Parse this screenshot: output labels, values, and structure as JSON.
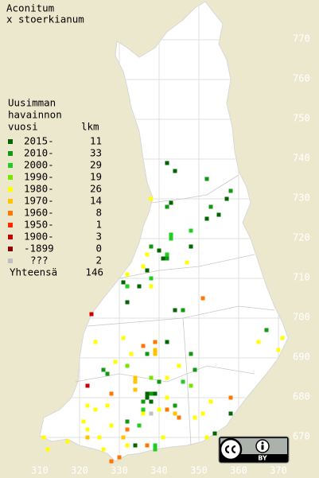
{
  "title": "Aconitum",
  "subtitle": "x stoerkianum",
  "legend": {
    "heading": [
      "Uusimman",
      "havainnon",
      "vuosi"
    ],
    "count_heading": "lkm",
    "items": [
      {
        "label": "2015-",
        "color": "#006600",
        "count": 11
      },
      {
        "label": "2010-",
        "color": "#119911",
        "count": 33
      },
      {
        "label": "2000-",
        "color": "#22cc22",
        "count": 29
      },
      {
        "label": "1990-",
        "color": "#77e600",
        "count": 19
      },
      {
        "label": "1980-",
        "color": "#ffff00",
        "count": 26
      },
      {
        "label": "1970-",
        "color": "#ffc400",
        "count": 14
      },
      {
        "label": "1960-",
        "color": "#ff7700",
        "count": 8
      },
      {
        "label": "1950-",
        "color": "#ff2a00",
        "count": 1
      },
      {
        "label": "1900-",
        "color": "#cc0000",
        "count": 3
      },
      {
        "label": "-1899",
        "color": "#880000",
        "count": 0
      },
      {
        "label": "???",
        "color": "#c0c0c0",
        "count": 2
      }
    ],
    "total_label": "Yhteensä",
    "total": 146
  },
  "map": {
    "xlim": [
      300,
      380
    ],
    "ylim": [
      660,
      780
    ],
    "xticks": [
      310,
      320,
      330,
      340,
      350,
      360,
      370
    ],
    "yticks": [
      670,
      680,
      690,
      700,
      710,
      720,
      730,
      740,
      750,
      760,
      770
    ],
    "points": [
      [
        342,
        739,
        0
      ],
      [
        344,
        737,
        0
      ],
      [
        352,
        735,
        1
      ],
      [
        358,
        732,
        1
      ],
      [
        357,
        730,
        0
      ],
      [
        338,
        730,
        4
      ],
      [
        343,
        729,
        0
      ],
      [
        342,
        728,
        1
      ],
      [
        353,
        728,
        1
      ],
      [
        355,
        726,
        0
      ],
      [
        352,
        725,
        0
      ],
      [
        348,
        722,
        2
      ],
      [
        343,
        721,
        2
      ],
      [
        343,
        720,
        2
      ],
      [
        338,
        718,
        1
      ],
      [
        340,
        717,
        0
      ],
      [
        348,
        718,
        0
      ],
      [
        337,
        716,
        4
      ],
      [
        342,
        716,
        2
      ],
      [
        342,
        715,
        1
      ],
      [
        341,
        715,
        0
      ],
      [
        347,
        714,
        4
      ],
      [
        336,
        713,
        4
      ],
      [
        337,
        712,
        0
      ],
      [
        338,
        710,
        2
      ],
      [
        332,
        711,
        4
      ],
      [
        331,
        709,
        0
      ],
      [
        332,
        708,
        2
      ],
      [
        335,
        708,
        0
      ],
      [
        338,
        708,
        4
      ],
      [
        332,
        704,
        0
      ],
      [
        344,
        702,
        0
      ],
      [
        346,
        702,
        1
      ],
      [
        351,
        705,
        6
      ],
      [
        323,
        701,
        8
      ],
      [
        367,
        697,
        1
      ],
      [
        371,
        695,
        4
      ],
      [
        370,
        692,
        4
      ],
      [
        365,
        694,
        4
      ],
      [
        331,
        695,
        4
      ],
      [
        324,
        694,
        4
      ],
      [
        336,
        693,
        6
      ],
      [
        339,
        694,
        6
      ],
      [
        339,
        692,
        5
      ],
      [
        339,
        691,
        5
      ],
      [
        337,
        691,
        1
      ],
      [
        342,
        694,
        0
      ],
      [
        348,
        691,
        1
      ],
      [
        333,
        691,
        4
      ],
      [
        329,
        689,
        4
      ],
      [
        345,
        688,
        4
      ],
      [
        349,
        687,
        1
      ],
      [
        332,
        688,
        3
      ],
      [
        326,
        687,
        1
      ],
      [
        327,
        686,
        1
      ],
      [
        334,
        685,
        5
      ],
      [
        334,
        684,
        5
      ],
      [
        334,
        682,
        5
      ],
      [
        346,
        684,
        2
      ],
      [
        348,
        683,
        3
      ],
      [
        338,
        685,
        3
      ],
      [
        340,
        684,
        1
      ],
      [
        342,
        685,
        4
      ],
      [
        322,
        683,
        8
      ],
      [
        328,
        681,
        6
      ],
      [
        337,
        681,
        0
      ],
      [
        339,
        681,
        0
      ],
      [
        338,
        681,
        1
      ],
      [
        336,
        679,
        1
      ],
      [
        338,
        679,
        0
      ],
      [
        337,
        680,
        0
      ],
      [
        342,
        680,
        4
      ],
      [
        344,
        678,
        1
      ],
      [
        353,
        679,
        4
      ],
      [
        358,
        680,
        6
      ],
      [
        336,
        677,
        2
      ],
      [
        338,
        676,
        10
      ],
      [
        336,
        676,
        4
      ],
      [
        340,
        677,
        4
      ],
      [
        342,
        677,
        6
      ],
      [
        344,
        676,
        5
      ],
      [
        345,
        675,
        6
      ],
      [
        349,
        675,
        4
      ],
      [
        358,
        676,
        0
      ],
      [
        351,
        676,
        4
      ],
      [
        324,
        677,
        4
      ],
      [
        327,
        678,
        4
      ],
      [
        322,
        678,
        4
      ],
      [
        332,
        674,
        1
      ],
      [
        332,
        672,
        6
      ],
      [
        335,
        673,
        2
      ],
      [
        328,
        673,
        4
      ],
      [
        321,
        674,
        4
      ],
      [
        322,
        672,
        4
      ],
      [
        354,
        671,
        0
      ],
      [
        352,
        670,
        4
      ],
      [
        325,
        670,
        4
      ],
      [
        322,
        670,
        5
      ],
      [
        317,
        669,
        4
      ],
      [
        311,
        670,
        4
      ],
      [
        331,
        670,
        5
      ],
      [
        334,
        668,
        0
      ],
      [
        339,
        667,
        2
      ],
      [
        339,
        668,
        2
      ],
      [
        332,
        668,
        4
      ],
      [
        337,
        668,
        6
      ],
      [
        341,
        670,
        4
      ],
      [
        326,
        667,
        4
      ],
      [
        330,
        665,
        6
      ],
      [
        328,
        664,
        6
      ],
      [
        312,
        667,
        4
      ]
    ]
  },
  "license": "BY"
}
